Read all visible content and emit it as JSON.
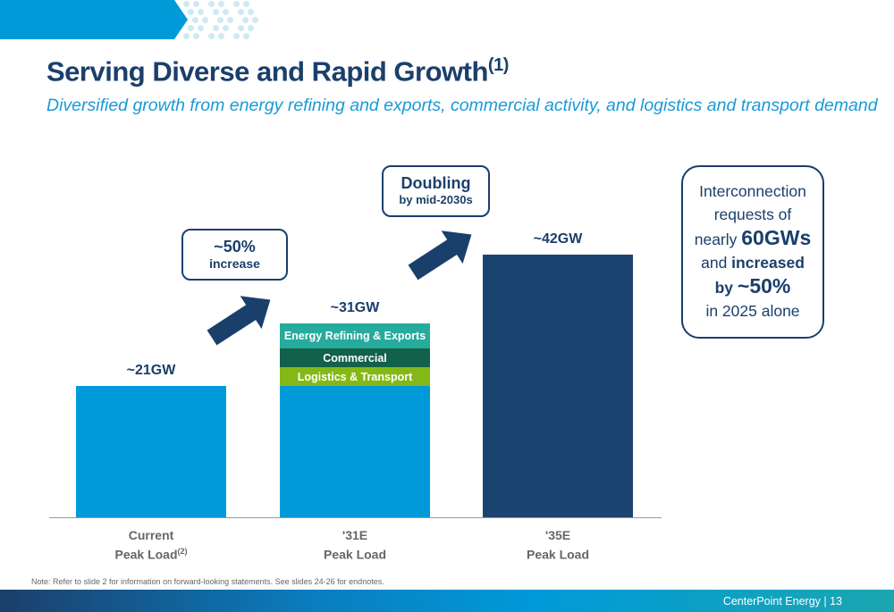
{
  "header": {
    "title": "Serving Diverse and Rapid Growth",
    "title_sup": "(1)",
    "subtitle": "Diversified growth from energy refining and exports, commercial activity, and logistics and transport demand"
  },
  "chart_data": {
    "type": "bar",
    "stacked": true,
    "unit": "GW",
    "ylim": [
      0,
      42
    ],
    "categories": [
      {
        "line1": "Current",
        "line2": "Peak Load",
        "sup": "(2)"
      },
      {
        "line1": "'31E",
        "line2": "Peak Load",
        "sup": ""
      },
      {
        "line1": "'35E",
        "line2": "Peak Load",
        "sup": ""
      }
    ],
    "totals": [
      21,
      31,
      42
    ],
    "total_labels": [
      "~21GW",
      "~31GW",
      "~42GW"
    ],
    "series": [
      {
        "name": "",
        "values": [
          21,
          21,
          42
        ],
        "colors": [
          "#009ad9",
          "#009ad9",
          "#1b4370"
        ]
      },
      {
        "name": "Logistics & Transport",
        "values": [
          0,
          3,
          0
        ],
        "color": "#84b817"
      },
      {
        "name": "Commercial",
        "values": [
          0,
          3,
          0
        ],
        "color": "#12614a"
      },
      {
        "name": "Energy Refining & Exports",
        "values": [
          0,
          4,
          0
        ],
        "color": "#26ab9c"
      }
    ]
  },
  "callouts": {
    "increase": {
      "value": "~50%",
      "text": "increase"
    },
    "doubling": {
      "value": "Doubling",
      "text": "by mid-2030s"
    }
  },
  "side": {
    "l1": "Interconnection",
    "l2": "requests of",
    "l3a": "nearly ",
    "l3b": "60GWs",
    "l4a": "and ",
    "l4b": "increased",
    "l5a": "by ",
    "l5b": "~50%",
    "l6": "in 2025 alone"
  },
  "note": "Note: Refer to slide 2 for information on forward-looking statements. See slides 24-26 for endnotes.",
  "footer": "CenterPoint Energy | 13",
  "colors": {
    "navy": "#1b3f6b",
    "accent": "#009ad9"
  }
}
